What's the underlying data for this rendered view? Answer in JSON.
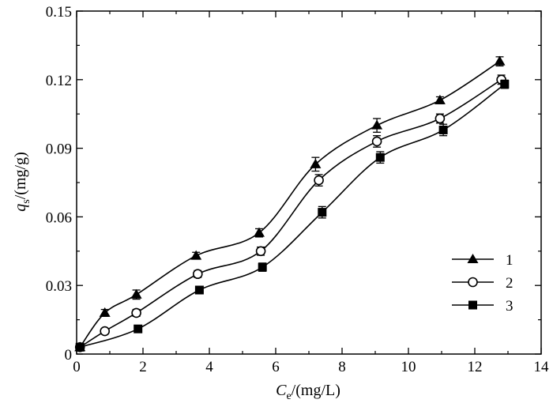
{
  "chart_data": {
    "type": "line",
    "xlabel": {
      "var": "C",
      "sub": "e",
      "unit": "/(mg/L)"
    },
    "ylabel": {
      "var": "q",
      "sub": "s",
      "unit": "/(mg/g)"
    },
    "xlim": [
      0,
      14
    ],
    "ylim": [
      0,
      0.15
    ],
    "x_ticks": [
      "0",
      "2",
      "4",
      "6",
      "8",
      "10",
      "12",
      "14"
    ],
    "y_ticks": [
      "0",
      "0.03",
      "0.06",
      "0.09",
      "0.12",
      "0.15"
    ],
    "legend_position": "bottom-right",
    "grid": false,
    "series": [
      {
        "name": "1",
        "marker": "triangle",
        "points": [
          [
            0.1,
            0.003
          ],
          [
            0.85,
            0.018
          ],
          [
            1.8,
            0.026
          ],
          [
            3.6,
            0.043
          ],
          [
            5.5,
            0.053
          ],
          [
            7.2,
            0.083
          ],
          [
            9.05,
            0.1
          ],
          [
            10.95,
            0.111
          ],
          [
            12.75,
            0.128
          ]
        ],
        "errors": [
          0.0008,
          0.0015,
          0.002,
          0.0015,
          0.0018,
          0.003,
          0.003,
          0.0015,
          0.002
        ]
      },
      {
        "name": "2",
        "marker": "open-circle",
        "points": [
          [
            0.1,
            0.003
          ],
          [
            0.85,
            0.01
          ],
          [
            1.8,
            0.018
          ],
          [
            3.65,
            0.035
          ],
          [
            5.55,
            0.045
          ],
          [
            7.3,
            0.076
          ],
          [
            9.05,
            0.093
          ],
          [
            10.95,
            0.103
          ],
          [
            12.8,
            0.12
          ]
        ],
        "errors": [
          0.0008,
          0.0012,
          0.0015,
          0.0015,
          0.0018,
          0.0025,
          0.0025,
          0.002,
          0.002
        ]
      },
      {
        "name": "3",
        "marker": "filled-square",
        "points": [
          [
            0.1,
            0.003
          ],
          [
            1.85,
            0.011
          ],
          [
            3.7,
            0.028
          ],
          [
            5.6,
            0.038
          ],
          [
            7.4,
            0.062
          ],
          [
            9.15,
            0.086
          ],
          [
            11.05,
            0.098
          ],
          [
            12.9,
            0.118
          ]
        ],
        "errors": [
          0.0008,
          0.0015,
          0.0015,
          0.0018,
          0.0025,
          0.0025,
          0.0025,
          0.0018
        ]
      }
    ]
  }
}
